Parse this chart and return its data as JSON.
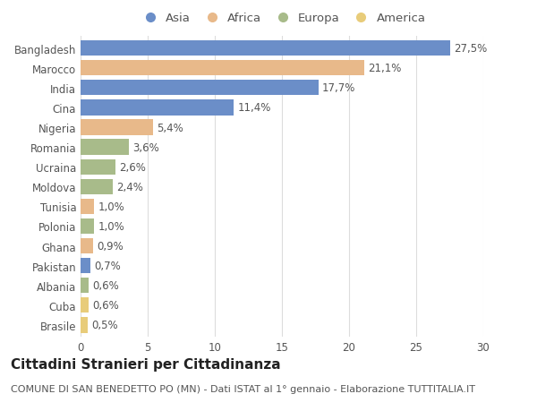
{
  "countries": [
    "Bangladesh",
    "Marocco",
    "India",
    "Cina",
    "Nigeria",
    "Romania",
    "Ucraina",
    "Moldova",
    "Tunisia",
    "Polonia",
    "Ghana",
    "Pakistan",
    "Albania",
    "Cuba",
    "Brasile"
  ],
  "values": [
    27.5,
    21.1,
    17.7,
    11.4,
    5.4,
    3.6,
    2.6,
    2.4,
    1.0,
    1.0,
    0.9,
    0.7,
    0.6,
    0.6,
    0.5
  ],
  "labels": [
    "27,5%",
    "21,1%",
    "17,7%",
    "11,4%",
    "5,4%",
    "3,6%",
    "2,6%",
    "2,4%",
    "1,0%",
    "1,0%",
    "0,9%",
    "0,7%",
    "0,6%",
    "0,6%",
    "0,5%"
  ],
  "continents": [
    "Asia",
    "Africa",
    "Asia",
    "Asia",
    "Africa",
    "Europa",
    "Europa",
    "Europa",
    "Africa",
    "Europa",
    "Africa",
    "Asia",
    "Europa",
    "America",
    "America"
  ],
  "continent_colors": {
    "Asia": "#6b8ec8",
    "Africa": "#e8b98a",
    "Europa": "#a8bb8a",
    "America": "#e8cc7a"
  },
  "legend_order": [
    "Asia",
    "Africa",
    "Europa",
    "America"
  ],
  "title": "Cittadini Stranieri per Cittadinanza",
  "subtitle": "COMUNE DI SAN BENEDETTO PO (MN) - Dati ISTAT al 1° gennaio - Elaborazione TUTTITALIA.IT",
  "xlim": [
    0,
    30
  ],
  "xticks": [
    0,
    5,
    10,
    15,
    20,
    25,
    30
  ],
  "bg_color": "#ffffff",
  "grid_color": "#dddddd",
  "bar_height": 0.78,
  "title_fontsize": 11,
  "subtitle_fontsize": 8,
  "label_fontsize": 8.5,
  "tick_fontsize": 8.5,
  "legend_fontsize": 9.5
}
